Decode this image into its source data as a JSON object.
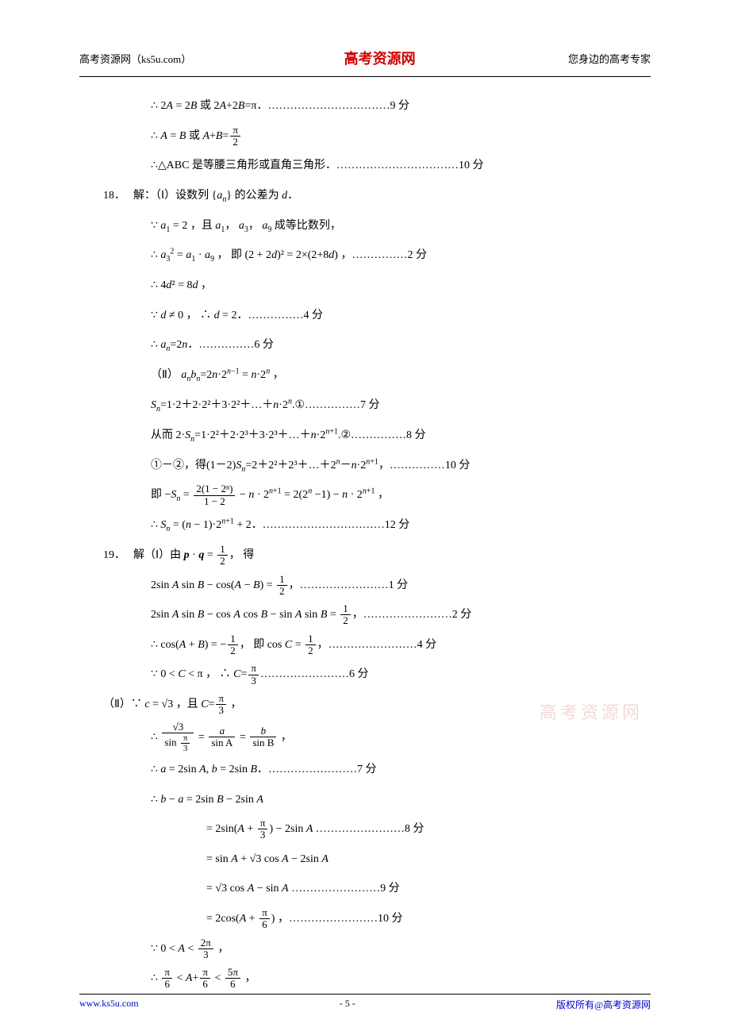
{
  "header": {
    "left": "高考资源网（ks5u.com）",
    "center": "高考资源网",
    "right": "您身边的高考专家"
  },
  "footer": {
    "left": "www.ks5u.com",
    "center": "- 5 -",
    "right": "版权所有@高考资源网"
  },
  "watermark": "高考资源网",
  "lines": {
    "l1a": "∴ 2",
    "l1b": " = 2",
    "l1c": " 或 2",
    "l1d": "+2",
    "l1e": "=π．……………………………9 分",
    "l2a": "∴ ",
    "l2b": " = ",
    "l2c": " 或 ",
    "l2d": "+",
    "l2e": "=",
    "l3": "∴△ABC 是等腰三角形或直角三角形．……………………………10 分",
    "q18": "18．",
    "l4a": "解：（Ⅰ）设数列 {",
    "l4b": "} 的公差为 ",
    "l4c": "．",
    "l5a": "∵ ",
    "l5b": " = 2 ，且 ",
    "l5c": "， ",
    "l5d": "， ",
    "l5e": " 成等比数列，",
    "l6a": "∴ ",
    "l6b": " = ",
    "l6c": " · ",
    "l6d": " ， 即 (2 + 2",
    "l6e": ")² = 2×(2+8",
    "l6f": ") ，……………2 分",
    "l7a": "∴ 4",
    "l7b": "² = 8",
    "l7c": " ，",
    "l8a": "∵ ",
    "l8b": " ≠ 0 ， ∴ ",
    "l8c": " = 2．……………4 分",
    "l9a": "∴ ",
    "l9b": "=2",
    "l9c": "．……………6 分",
    "l10a": "（Ⅱ） ",
    "l10b": "=2",
    "l10c": "·2",
    "l10d": " = ",
    "l10e": "·2",
    "l10f": " ，",
    "l11a": "=1·2＋2·2²＋3·2²＋…＋",
    "l11b": "·2",
    "l11c": ".①……………7 分",
    "l12a": "从而 2·",
    "l12b": "=1·2²＋2·2³＋3·2³＋…＋",
    "l12c": "·2",
    "l12d": ".②……………8 分",
    "l13a": "①－②，得(1－2)",
    "l13b": "=2＋2²＋2³＋…＋2",
    "l13c": "－",
    "l13d": "·2",
    "l13e": "，……………10 分",
    "l14a": "即 −",
    "l14b": " = ",
    "l14c": " − ",
    "l14d": " · 2",
    "l14e": " = 2(2",
    "l14f": " −1) − ",
    "l14g": " · 2",
    "l14h": " ，",
    "l15a": "∴ ",
    "l15b": " = (",
    "l15c": " − 1)·2",
    "l15d": " + 2．……………………………12 分",
    "q19": "19．",
    "l16a": "解（Ⅰ）由 ",
    "l16b": " · ",
    "l16c": " = ",
    "l16d": "， 得",
    "l17a": "2sin ",
    "l17b": " sin ",
    "l17c": " − cos(",
    "l17d": " − ",
    "l17e": ") = ",
    "l17f": "，……………………1 分",
    "l18a": "2sin ",
    "l18b": " sin ",
    "l18c": " − cos ",
    "l18d": " cos ",
    "l18e": " − sin ",
    "l18f": " sin ",
    "l18g": " = ",
    "l18h": "，……………………2 分",
    "l19a": "∴ cos(",
    "l19b": " + ",
    "l19c": ") = −",
    "l19d": "， 即 cos ",
    "l19e": " = ",
    "l19f": "，……………………4 分",
    "l20a": "∵ 0 < ",
    "l20b": " < π ， ∴ ",
    "l20c": "=",
    "l20d": "……………………6 分",
    "l21a": "（Ⅱ）∵ ",
    "l21b": " = √3 ，且 ",
    "l21c": "=",
    "l21d": " ，",
    "l22a": "∴ ",
    "l22b": " = ",
    "l22c": " = ",
    "l22d": " ，",
    "l23a": "∴ ",
    "l23b": " = 2sin ",
    "l23c": ", ",
    "l23d": " = 2sin ",
    "l23e": "．……………………7 分",
    "l24a": "∴ ",
    "l24b": " − ",
    "l24c": " = 2sin ",
    "l24d": " − 2sin ",
    "l25a": "= 2sin(",
    "l25b": " + ",
    "l25c": ") − 2sin ",
    "l25d": " ……………………8 分",
    "l26a": "= sin ",
    "l26b": " + √3 cos ",
    "l26c": " − 2sin ",
    "l27a": "= √3 cos ",
    "l27b": " − sin ",
    "l27c": " ……………………9 分",
    "l28a": "= 2cos(",
    "l28b": " + ",
    "l28c": ") ，……………………10 分",
    "l29a": "∵ 0 < ",
    "l29b": " < ",
    "l29c": " ，",
    "l30a": "∴ ",
    "l30b": " < ",
    "l30c": "+",
    "l30d": " < ",
    "l30e": " ，"
  },
  "fracs": {
    "pi2": {
      "num": "π",
      "den": "2"
    },
    "pi3": {
      "num": "π",
      "den": "3"
    },
    "pi6": {
      "num": "π",
      "den": "6"
    },
    "tpi3": {
      "num": "2π",
      "den": "3"
    },
    "fpi6": {
      "num": "5π",
      "den": "6"
    },
    "half": {
      "num": "1",
      "den": "2"
    },
    "geo": {
      "num": "2(1 − 2ⁿ)",
      "den": "1 − 2"
    },
    "sqrt3_sinpi3": {
      "num": "√3",
      "den_top": "sin",
      "den_bot_num": "π",
      "den_bot_den": "3"
    },
    "a_sinA": {
      "num": "a",
      "den": "sin A"
    },
    "b_sinB": {
      "num": "b",
      "den": "sin B"
    }
  }
}
